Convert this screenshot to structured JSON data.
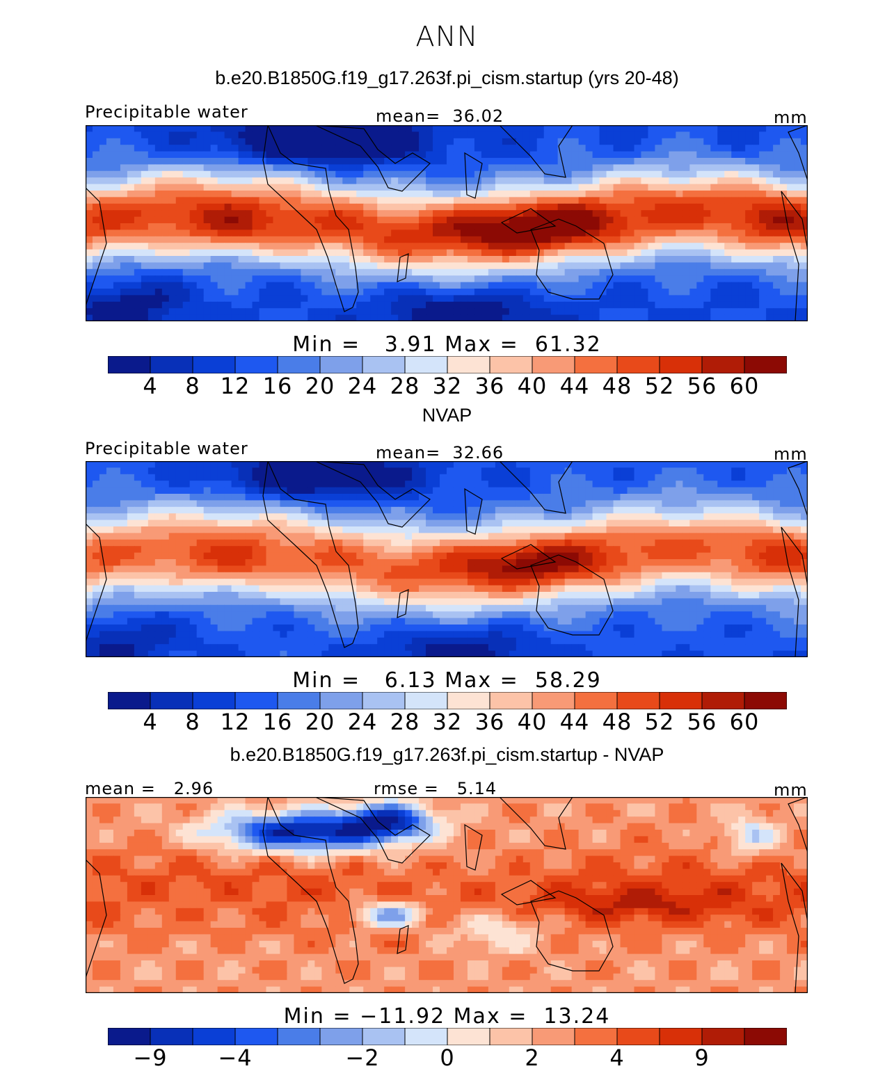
{
  "title": "ANN",
  "panels": [
    {
      "id": "model",
      "subtitle": "b.e20.B1850G.f19_g17.263f.pi_cism.startup (yrs 20-48)",
      "left_label": "Precipitable water",
      "center_label": "mean=  36.02",
      "right_label": "mm",
      "minmax": "Min =   3.91 Max =  61.32",
      "min": 3.91,
      "max": 61.32,
      "mean": 36.02,
      "colorbar_ticks": [
        "4",
        "8",
        "12",
        "16",
        "20",
        "24",
        "28",
        "32",
        "36",
        "40",
        "44",
        "48",
        "52",
        "56",
        "60"
      ]
    },
    {
      "id": "obs",
      "subtitle": "NVAP",
      "left_label": "Precipitable water",
      "center_label": "mean=  32.66",
      "right_label": "mm",
      "minmax": "Min =   6.13 Max =  58.29",
      "min": 6.13,
      "max": 58.29,
      "mean": 32.66,
      "colorbar_ticks": [
        "4",
        "8",
        "12",
        "16",
        "20",
        "24",
        "28",
        "32",
        "36",
        "40",
        "44",
        "48",
        "52",
        "56",
        "60"
      ]
    },
    {
      "id": "diff",
      "subtitle": "b.e20.B1850G.f19_g17.263f.pi_cism.startup - NVAP",
      "left_label": "mean =   2.96",
      "center_label": "rmse =   5.14",
      "right_label": "mm",
      "minmax": "Min = −11.92 Max =  13.24",
      "min": -11.92,
      "max": 13.24,
      "mean": 2.96,
      "rmse": 5.14,
      "colorbar_ticks": [
        "−9",
        "−4",
        "−2",
        "0",
        "2",
        "4",
        "9"
      ]
    }
  ],
  "colors": {
    "palette": [
      "#0a1a8c",
      "#0830b8",
      "#0a3fd6",
      "#1e58f0",
      "#4a7de8",
      "#7ea0ea",
      "#a9c2f2",
      "#d4e4fa",
      "#fde3d4",
      "#fcc3a8",
      "#f89a76",
      "#f4703f",
      "#e84a1a",
      "#d83008",
      "#b01c06",
      "#8c0a04"
    ]
  }
}
